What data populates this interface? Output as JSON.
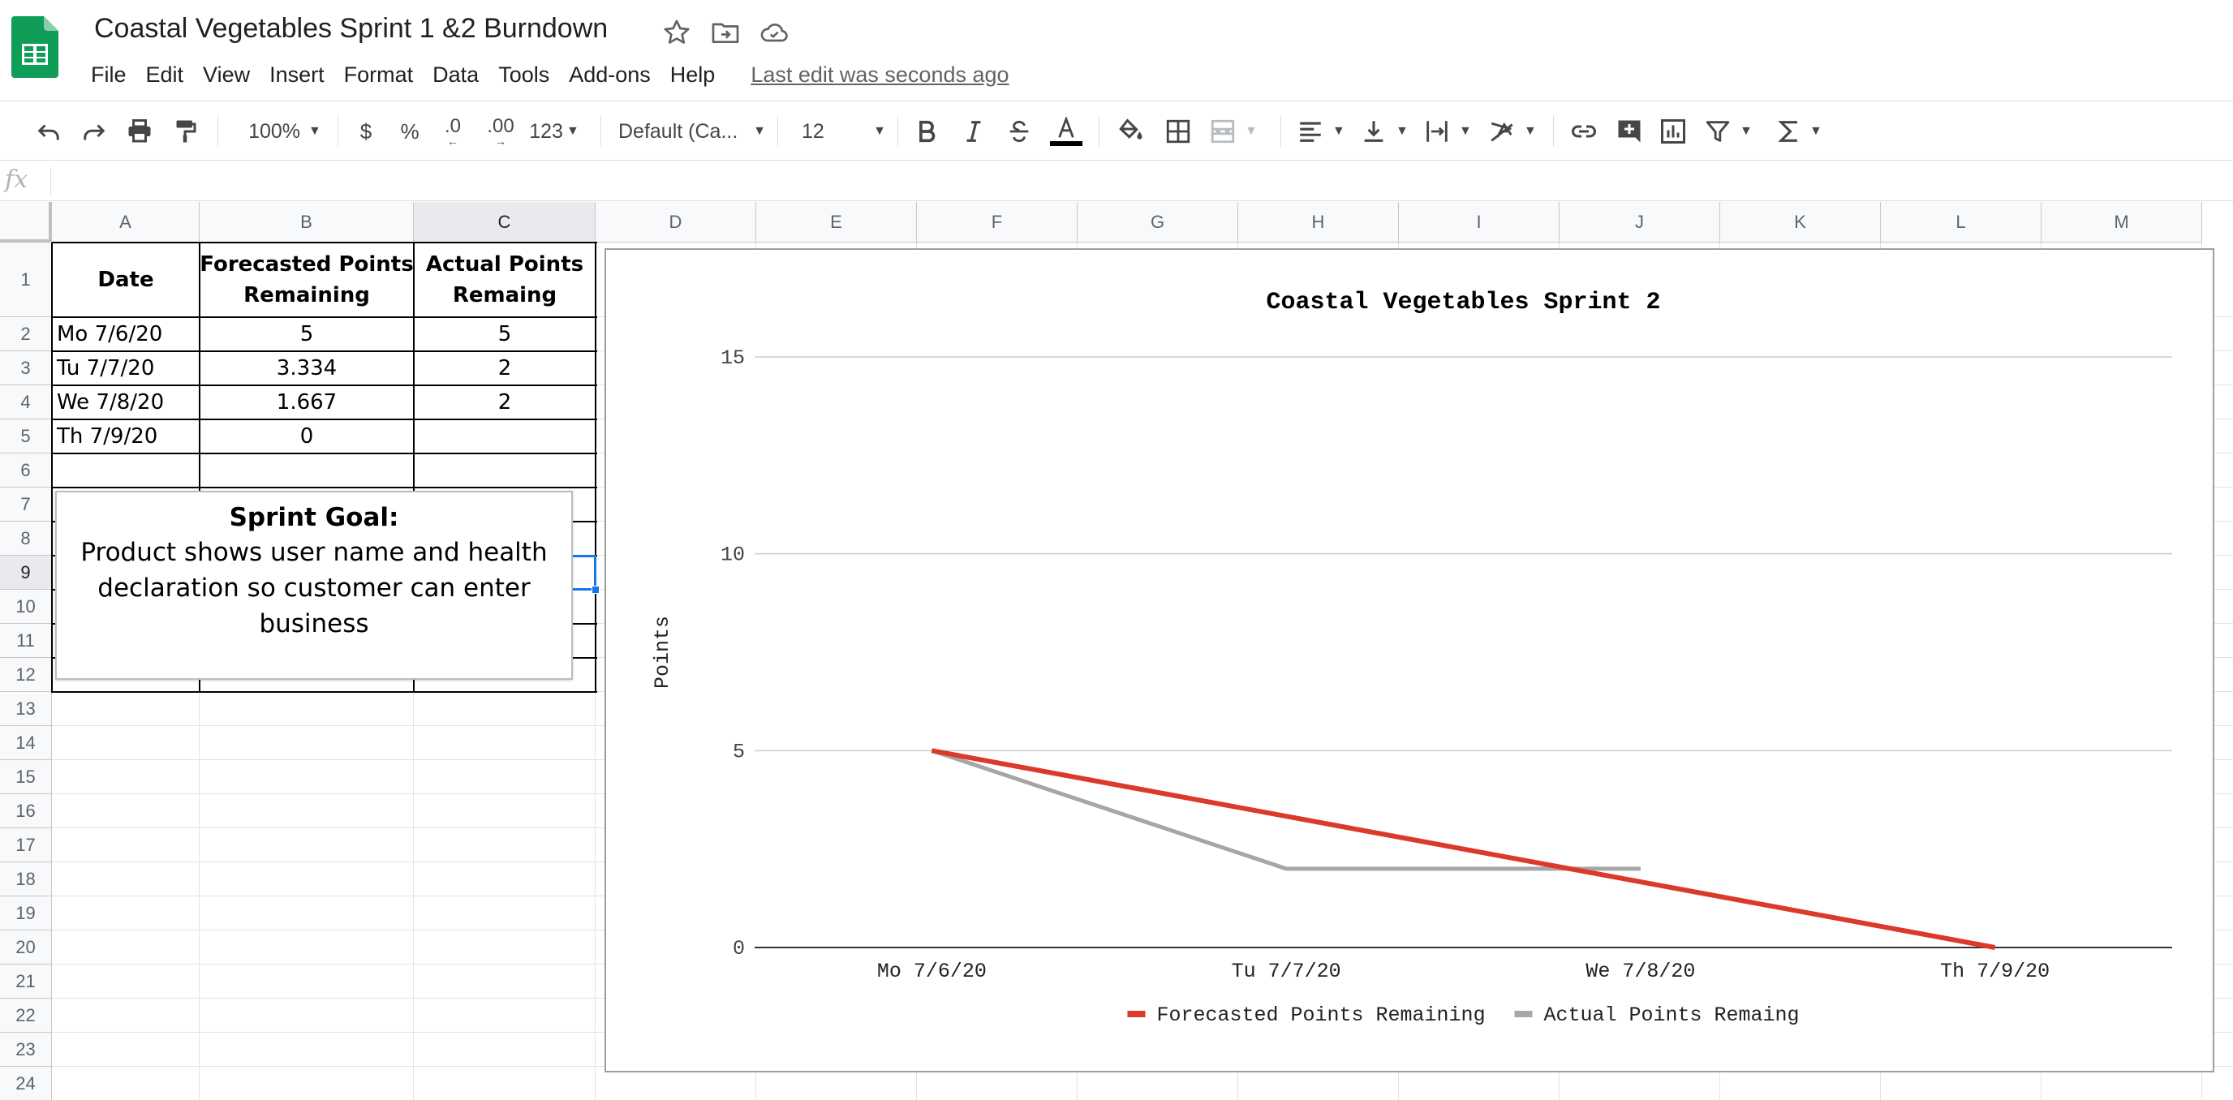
{
  "doc": {
    "title": "Coastal Vegetables Sprint 1 &2 Burndown",
    "last_edit": "Last edit was seconds ago",
    "colors": {
      "sheets_green": "#0f9d58",
      "selection_blue": "#1a73e8"
    }
  },
  "menu": [
    "File",
    "Edit",
    "View",
    "Insert",
    "Format",
    "Data",
    "Tools",
    "Add-ons",
    "Help"
  ],
  "toolbar": {
    "zoom": "100%",
    "currency": "$",
    "percent": "%",
    "decrease_decimals": ".0",
    "increase_decimals": ".00",
    "more_formats": "123",
    "font": "Default (Ca...",
    "font_size": "12",
    "icons": [
      "undo-icon",
      "redo-icon",
      "print-icon",
      "paint-format-icon",
      "bold-icon",
      "italic-icon",
      "strikethrough-icon",
      "text-color-icon",
      "fill-color-icon",
      "borders-icon",
      "merge-cells-icon",
      "align-left-icon",
      "vertical-align-icon",
      "text-wrap-icon",
      "text-rotate-icon",
      "link-icon",
      "insert-comment-icon",
      "insert-chart-icon",
      "filter-icon",
      "functions-icon"
    ]
  },
  "formula_bar": {
    "fx": "fx",
    "value": ""
  },
  "grid": {
    "columns": [
      "A",
      "B",
      "C",
      "D",
      "E",
      "F",
      "G",
      "H",
      "I",
      "J",
      "K",
      "L",
      "M"
    ],
    "rows": [
      "1",
      "2",
      "3",
      "4",
      "5",
      "6",
      "7",
      "8",
      "9",
      "10",
      "11",
      "12",
      "13",
      "14",
      "15",
      "16",
      "17",
      "18",
      "19",
      "20",
      "21",
      "22",
      "23",
      "24"
    ],
    "selected_column": "C",
    "selected_row": "9",
    "table": {
      "headers": [
        "Date",
        "Forecasted Points Remaining",
        "Actual Points Remaing"
      ],
      "rows": [
        [
          "Mo 7/6/20",
          "5",
          "5"
        ],
        [
          "Tu 7/7/20",
          "3.334",
          "2"
        ],
        [
          "We 7/8/20",
          "1.667",
          "2"
        ],
        [
          "Th 7/9/20",
          "0",
          ""
        ]
      ]
    }
  },
  "text_box": {
    "title": "Sprint Goal:",
    "body": "Product shows user name and health declaration so customer can enter business"
  },
  "chart_data": {
    "type": "line",
    "title": "Coastal Vegetables Sprint 2",
    "xlabel": "",
    "ylabel": "Points",
    "categories": [
      "Mo 7/6/20",
      "Tu 7/7/20",
      "We 7/8/20",
      "Th 7/9/20"
    ],
    "series": [
      {
        "name": "Forecasted Points Remaining",
        "values": [
          5,
          3.334,
          1.667,
          0
        ],
        "color": "#db3a2b"
      },
      {
        "name": "Actual Points Remaing",
        "values": [
          5,
          2,
          2,
          null
        ],
        "color": "#a6a6a6"
      }
    ],
    "ylim": [
      0,
      15
    ],
    "yticks": [
      0,
      5,
      10,
      15
    ],
    "grid": true,
    "legend": "bottom"
  }
}
